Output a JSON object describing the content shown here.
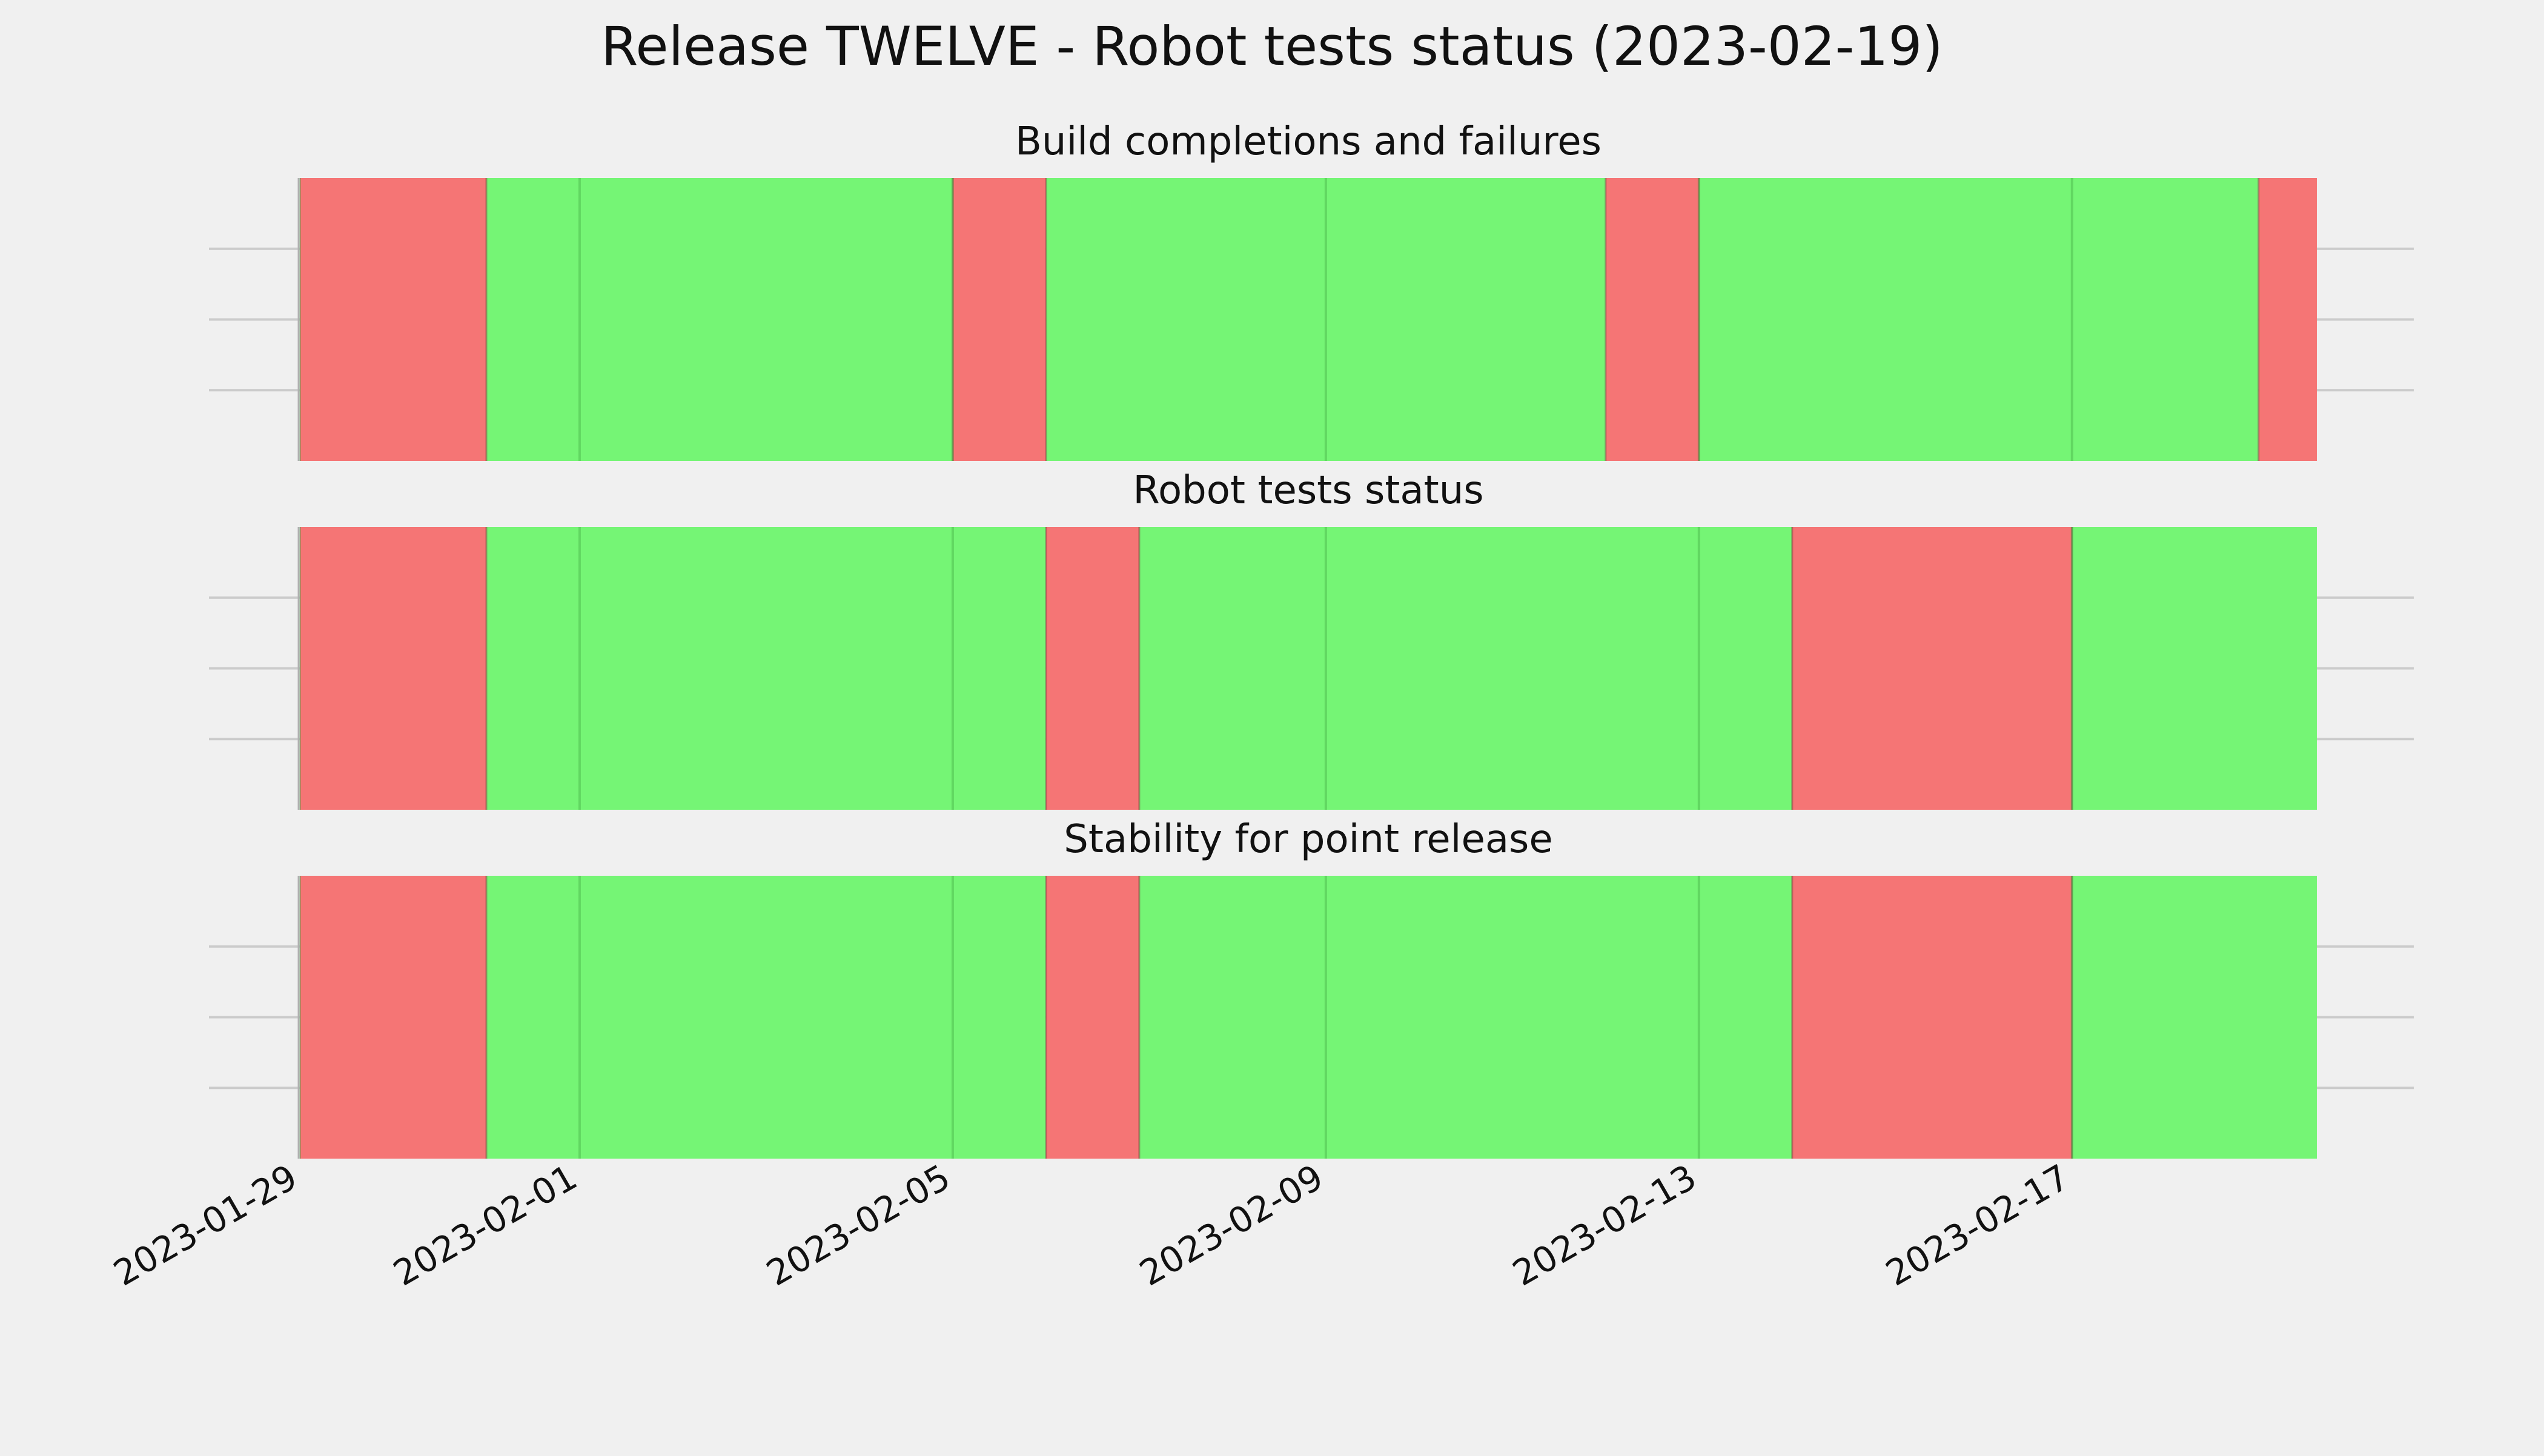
{
  "chart_data": {
    "type": "timeline",
    "title": "Release TWELVE - Robot tests status (2023-02-19)",
    "x_axis": {
      "type": "date",
      "range": [
        "2023-01-29",
        "2023-02-19"
      ],
      "tick_labels": [
        "2023-01-29",
        "2023-02-01",
        "2023-02-05",
        "2023-02-09",
        "2023-02-13",
        "2023-02-17"
      ]
    },
    "grid": true,
    "panels": [
      {
        "title": "Build completions and failures",
        "segments": [
          {
            "start": "2023-01-29",
            "end": "2023-01-31",
            "status": "fail"
          },
          {
            "start": "2023-01-31",
            "end": "2023-02-05",
            "status": "pass"
          },
          {
            "start": "2023-02-05",
            "end": "2023-02-06",
            "status": "fail"
          },
          {
            "start": "2023-02-06",
            "end": "2023-02-12",
            "status": "pass"
          },
          {
            "start": "2023-02-12",
            "end": "2023-02-13",
            "status": "fail"
          },
          {
            "start": "2023-02-13",
            "end": "2023-02-19",
            "status": "pass"
          },
          {
            "start": "2023-02-19",
            "end": "2023-02-19T15:00",
            "status": "fail"
          }
        ]
      },
      {
        "title": "Robot tests status",
        "segments": [
          {
            "start": "2023-01-29",
            "end": "2023-01-31",
            "status": "fail"
          },
          {
            "start": "2023-01-31",
            "end": "2023-02-06",
            "status": "pass"
          },
          {
            "start": "2023-02-06",
            "end": "2023-02-07",
            "status": "fail"
          },
          {
            "start": "2023-02-07",
            "end": "2023-02-14",
            "status": "pass"
          },
          {
            "start": "2023-02-14",
            "end": "2023-02-17",
            "status": "fail"
          },
          {
            "start": "2023-02-17",
            "end": "2023-02-19T15:00",
            "status": "pass"
          }
        ]
      },
      {
        "title": "Stability for point release",
        "segments": [
          {
            "start": "2023-01-29",
            "end": "2023-01-31",
            "status": "fail"
          },
          {
            "start": "2023-01-31",
            "end": "2023-02-06",
            "status": "pass"
          },
          {
            "start": "2023-02-06",
            "end": "2023-02-07",
            "status": "fail"
          },
          {
            "start": "2023-02-07",
            "end": "2023-02-14",
            "status": "pass"
          },
          {
            "start": "2023-02-14",
            "end": "2023-02-17",
            "status": "fail"
          },
          {
            "start": "2023-02-17",
            "end": "2023-02-19T15:00",
            "status": "pass"
          }
        ]
      }
    ],
    "colors": {
      "pass": "#75f575",
      "fail": "#f57575",
      "background": "#f0f0f0",
      "grid": "#cbcbcb",
      "text": "#111111"
    }
  }
}
